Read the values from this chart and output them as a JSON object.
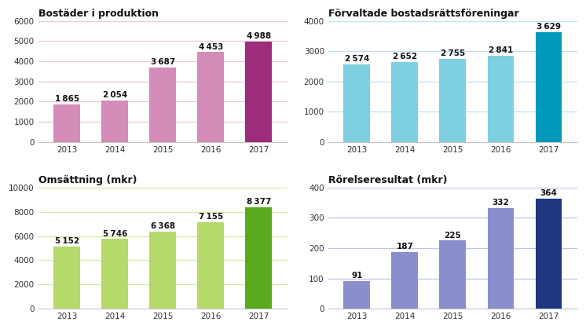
{
  "charts": [
    {
      "title": "Bostäder i produktion",
      "years": [
        "2013",
        "2014",
        "2015",
        "2016",
        "2017"
      ],
      "values": [
        1865,
        2054,
        3687,
        4453,
        4988
      ],
      "bar_colors": [
        "#d48cb8",
        "#d48cb8",
        "#d48cb8",
        "#d48cb8",
        "#9c2d7a"
      ],
      "grid_color": "#e8c8da",
      "ylim": [
        0,
        6000
      ],
      "yticks": [
        0,
        1000,
        2000,
        3000,
        4000,
        5000,
        6000
      ],
      "value_labels": [
        "1 865",
        "2 054",
        "3 687",
        "4 453",
        "4 988"
      ]
    },
    {
      "title": "Förvaltade bostadsrättsföreningar",
      "years": [
        "2013",
        "2014",
        "2015",
        "2016",
        "2017"
      ],
      "values": [
        2574,
        2652,
        2755,
        2841,
        3629
      ],
      "bar_colors": [
        "#7ecfe0",
        "#7ecfe0",
        "#7ecfe0",
        "#7ecfe0",
        "#0099bb"
      ],
      "grid_color": "#b8e4ee",
      "ylim": [
        0,
        4000
      ],
      "yticks": [
        0,
        1000,
        2000,
        3000,
        4000
      ],
      "value_labels": [
        "2 574",
        "2 652",
        "2 755",
        "2 841",
        "3 629"
      ]
    },
    {
      "title": "Omsättning (mkr)",
      "years": [
        "2013",
        "2014",
        "2015",
        "2016",
        "2017"
      ],
      "values": [
        5152,
        5746,
        6368,
        7155,
        8377
      ],
      "bar_colors": [
        "#b5d96b",
        "#b5d96b",
        "#b5d96b",
        "#b5d96b",
        "#5aaa1e"
      ],
      "grid_color": "#d6eaa0",
      "ylim": [
        0,
        10000
      ],
      "yticks": [
        0,
        2000,
        4000,
        6000,
        8000,
        10000
      ],
      "value_labels": [
        "5 152",
        "5 746",
        "6 368",
        "7 155",
        "8 377"
      ]
    },
    {
      "title": "Rörelseresultat (mkr)",
      "years": [
        "2013",
        "2014",
        "2015",
        "2016",
        "2017"
      ],
      "values": [
        91,
        187,
        225,
        332,
        364
      ],
      "bar_colors": [
        "#8a8fcc",
        "#8a8fcc",
        "#8a8fcc",
        "#8a8fcc",
        "#1e3580"
      ],
      "grid_color": "#c0c4e8",
      "ylim": [
        0,
        400
      ],
      "yticks": [
        0,
        100,
        200,
        300,
        400
      ],
      "value_labels": [
        "91",
        "187",
        "225",
        "332",
        "364"
      ]
    }
  ],
  "background_color": "#ffffff",
  "title_fontsize": 9,
  "label_fontsize": 7.5,
  "value_fontsize": 7.5
}
